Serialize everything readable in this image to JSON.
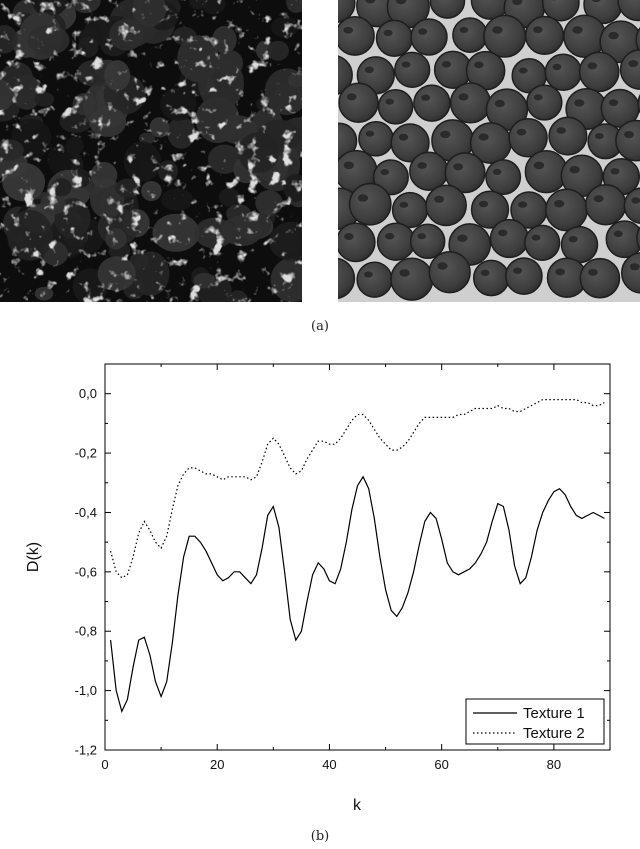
{
  "captions": {
    "a": "(a)",
    "b": "(b)"
  },
  "images": [
    {
      "name": "texture-1-image",
      "tone": "#0d0d0d"
    },
    {
      "name": "texture-2-image",
      "tone": "#cfcfcf"
    }
  ],
  "chart_data": {
    "type": "line",
    "xlabel": "k",
    "ylabel": "D(k)",
    "xlim": [
      0,
      90
    ],
    "ylim": [
      -1.2,
      0.1
    ],
    "xticks": [
      0,
      20,
      40,
      60,
      80
    ],
    "yticks": [
      -1.2,
      -1.0,
      -0.8,
      -0.6,
      -0.4,
      -0.2,
      0.0
    ],
    "ytick_labels": [
      "-1,2",
      "-1,0",
      "-0,8",
      "-0,6",
      "-0,4",
      "-0,2",
      "0,0"
    ],
    "grid": false,
    "legend_position": "bottom-right",
    "series": [
      {
        "name": "Texture 1",
        "style": "solid",
        "x": [
          1,
          2,
          3,
          4,
          5,
          6,
          7,
          8,
          9,
          10,
          11,
          12,
          13,
          14,
          15,
          16,
          17,
          18,
          19,
          20,
          21,
          22,
          23,
          24,
          25,
          26,
          27,
          28,
          29,
          30,
          31,
          32,
          33,
          34,
          35,
          36,
          37,
          38,
          39,
          40,
          41,
          42,
          43,
          44,
          45,
          46,
          47,
          48,
          49,
          50,
          51,
          52,
          53,
          54,
          55,
          56,
          57,
          58,
          59,
          60,
          61,
          62,
          63,
          64,
          65,
          66,
          67,
          68,
          69,
          70,
          71,
          72,
          73,
          74,
          75,
          76,
          77,
          78,
          79,
          80,
          81,
          82,
          83,
          84,
          85,
          86,
          87,
          88,
          89
        ],
        "y": [
          -0.83,
          -1.0,
          -1.07,
          -1.03,
          -0.92,
          -0.83,
          -0.82,
          -0.88,
          -0.97,
          -1.02,
          -0.97,
          -0.84,
          -0.68,
          -0.55,
          -0.48,
          -0.48,
          -0.5,
          -0.53,
          -0.57,
          -0.61,
          -0.63,
          -0.62,
          -0.6,
          -0.6,
          -0.62,
          -0.64,
          -0.61,
          -0.52,
          -0.41,
          -0.38,
          -0.45,
          -0.6,
          -0.76,
          -0.83,
          -0.8,
          -0.7,
          -0.61,
          -0.57,
          -0.59,
          -0.63,
          -0.64,
          -0.59,
          -0.5,
          -0.39,
          -0.31,
          -0.28,
          -0.32,
          -0.42,
          -0.55,
          -0.66,
          -0.73,
          -0.75,
          -0.72,
          -0.67,
          -0.6,
          -0.51,
          -0.43,
          -0.4,
          -0.42,
          -0.49,
          -0.57,
          -0.6,
          -0.61,
          -0.6,
          -0.59,
          -0.57,
          -0.54,
          -0.5,
          -0.43,
          -0.37,
          -0.38,
          -0.46,
          -0.58,
          -0.64,
          -0.62,
          -0.55,
          -0.46,
          -0.4,
          -0.36,
          -0.33,
          -0.32,
          -0.34,
          -0.38,
          -0.41,
          -0.42,
          -0.41,
          -0.4,
          -0.41,
          -0.42
        ]
      },
      {
        "name": "Texture 2",
        "style": "dotted",
        "x": [
          1,
          2,
          3,
          4,
          5,
          6,
          7,
          8,
          9,
          10,
          11,
          12,
          13,
          14,
          15,
          16,
          17,
          18,
          19,
          20,
          21,
          22,
          23,
          24,
          25,
          26,
          27,
          28,
          29,
          30,
          31,
          32,
          33,
          34,
          35,
          36,
          37,
          38,
          39,
          40,
          41,
          42,
          43,
          44,
          45,
          46,
          47,
          48,
          49,
          50,
          51,
          52,
          53,
          54,
          55,
          56,
          57,
          58,
          59,
          60,
          61,
          62,
          63,
          64,
          65,
          66,
          67,
          68,
          69,
          70,
          71,
          72,
          73,
          74,
          75,
          76,
          77,
          78,
          79,
          80,
          81,
          82,
          83,
          84,
          85,
          86,
          87,
          88,
          89
        ],
        "y": [
          -0.53,
          -0.6,
          -0.62,
          -0.61,
          -0.55,
          -0.47,
          -0.43,
          -0.46,
          -0.5,
          -0.52,
          -0.48,
          -0.39,
          -0.31,
          -0.27,
          -0.25,
          -0.25,
          -0.26,
          -0.27,
          -0.27,
          -0.28,
          -0.29,
          -0.28,
          -0.28,
          -0.28,
          -0.28,
          -0.29,
          -0.28,
          -0.23,
          -0.17,
          -0.15,
          -0.17,
          -0.21,
          -0.25,
          -0.27,
          -0.26,
          -0.22,
          -0.19,
          -0.16,
          -0.16,
          -0.17,
          -0.17,
          -0.15,
          -0.12,
          -0.09,
          -0.07,
          -0.07,
          -0.09,
          -0.12,
          -0.15,
          -0.17,
          -0.19,
          -0.19,
          -0.18,
          -0.16,
          -0.13,
          -0.1,
          -0.08,
          -0.08,
          -0.08,
          -0.08,
          -0.08,
          -0.08,
          -0.07,
          -0.07,
          -0.06,
          -0.05,
          -0.05,
          -0.05,
          -0.05,
          -0.04,
          -0.05,
          -0.05,
          -0.06,
          -0.06,
          -0.05,
          -0.04,
          -0.03,
          -0.02,
          -0.02,
          -0.02,
          -0.02,
          -0.02,
          -0.02,
          -0.02,
          -0.03,
          -0.03,
          -0.04,
          -0.04,
          -0.03
        ]
      }
    ]
  }
}
